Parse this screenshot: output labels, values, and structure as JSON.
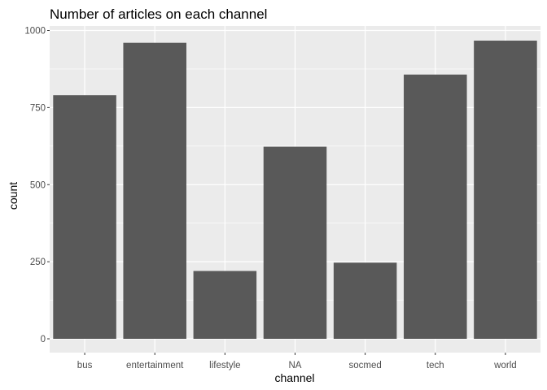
{
  "chart_data": {
    "type": "bar",
    "title": "Number of articles on each channel",
    "xlabel": "channel",
    "ylabel": "count",
    "categories": [
      "bus",
      "entertainment",
      "lifestyle",
      "NA",
      "socmed",
      "tech",
      "world"
    ],
    "values": [
      790,
      960,
      220,
      623,
      247,
      857,
      967
    ],
    "ylim": [
      0,
      1000
    ],
    "yticks": [
      0,
      250,
      500,
      750,
      1000
    ],
    "ytick_labels": [
      "0",
      "250",
      "500",
      "750",
      "1000"
    ],
    "grid": true,
    "colors": {
      "panel": "#EBEBEB",
      "grid_major": "#FFFFFF",
      "bar": "#595959",
      "tick_text": "#4D4D4D",
      "tick_mark": "#333333"
    }
  }
}
